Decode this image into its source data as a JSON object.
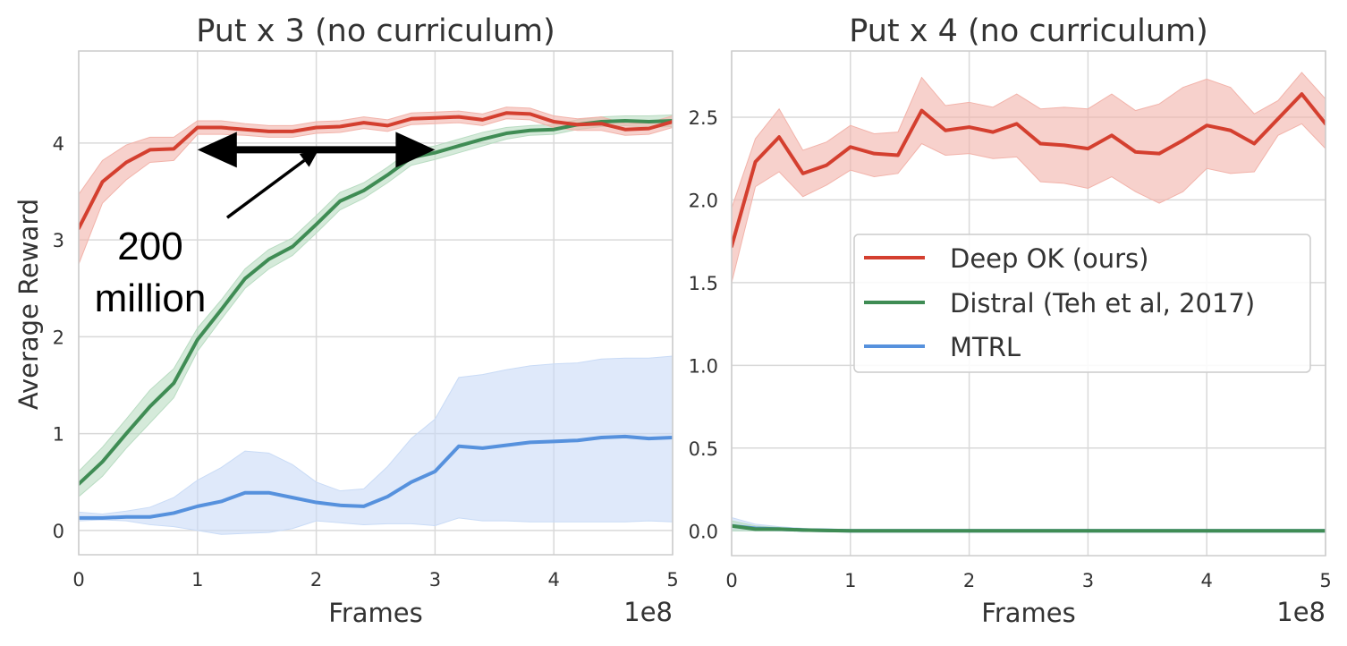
{
  "chart_data": [
    {
      "type": "line",
      "title": "Put x 3 (no curriculum)",
      "xlabel": "Frames",
      "ylabel": "Average Reward",
      "x_offset_label": "1e8",
      "xlim": [
        0,
        5
      ],
      "ylim": [
        -0.25,
        4.95
      ],
      "xticks": [
        0,
        1,
        2,
        3,
        4,
        5
      ],
      "xtick_labels": [
        "0",
        "1",
        "2",
        "3",
        "4",
        "5"
      ],
      "yticks": [
        0,
        1,
        2,
        3,
        4
      ],
      "ytick_labels": [
        "0",
        "1",
        "2",
        "3",
        "4"
      ],
      "grid": true,
      "legend": "none",
      "x": [
        0,
        0.2,
        0.4,
        0.6,
        0.8,
        1.0,
        1.2,
        1.4,
        1.6,
        1.8,
        2.0,
        2.2,
        2.4,
        2.6,
        2.8,
        3.0,
        3.2,
        3.4,
        3.6,
        3.8,
        4.0,
        4.2,
        4.4,
        4.6,
        4.8,
        5.0
      ],
      "series": [
        {
          "color": "#d43f2f",
          "band_color": "#f2b3aa",
          "values": [
            3.12,
            3.6,
            3.8,
            3.93,
            3.94,
            4.16,
            4.16,
            4.14,
            4.12,
            4.12,
            4.16,
            4.17,
            4.21,
            4.18,
            4.25,
            4.26,
            4.27,
            4.24,
            4.31,
            4.3,
            4.22,
            4.19,
            4.2,
            4.14,
            4.15,
            4.22
          ],
          "lower": [
            2.75,
            3.38,
            3.62,
            3.8,
            3.82,
            4.09,
            4.09,
            4.08,
            4.06,
            4.06,
            4.1,
            4.11,
            4.15,
            4.12,
            4.19,
            4.2,
            4.21,
            4.18,
            4.25,
            4.24,
            4.16,
            4.13,
            4.13,
            4.08,
            4.09,
            4.16
          ],
          "upper": [
            3.47,
            3.82,
            3.98,
            4.06,
            4.06,
            4.23,
            4.23,
            4.2,
            4.18,
            4.18,
            4.22,
            4.23,
            4.27,
            4.24,
            4.31,
            4.32,
            4.33,
            4.3,
            4.37,
            4.36,
            4.28,
            4.25,
            4.27,
            4.2,
            4.21,
            4.28
          ]
        },
        {
          "color": "#3f8c54",
          "band_color": "#b9dcc2",
          "values": [
            0.48,
            0.71,
            1.0,
            1.28,
            1.52,
            1.97,
            2.28,
            2.6,
            2.8,
            2.93,
            3.16,
            3.4,
            3.51,
            3.67,
            3.85,
            3.9,
            3.97,
            4.04,
            4.1,
            4.13,
            4.14,
            4.19,
            4.22,
            4.23,
            4.22,
            4.23
          ],
          "lower": [
            0.35,
            0.56,
            0.85,
            1.11,
            1.37,
            1.85,
            2.18,
            2.5,
            2.7,
            2.84,
            3.07,
            3.31,
            3.43,
            3.59,
            3.77,
            3.83,
            3.9,
            3.97,
            4.04,
            4.08,
            4.09,
            4.14,
            4.17,
            4.18,
            4.16,
            4.17
          ],
          "upper": [
            0.61,
            0.86,
            1.15,
            1.45,
            1.67,
            2.09,
            2.38,
            2.7,
            2.9,
            3.02,
            3.25,
            3.49,
            3.59,
            3.75,
            3.93,
            3.97,
            4.04,
            4.11,
            4.16,
            4.18,
            4.19,
            4.24,
            4.27,
            4.28,
            4.28,
            4.29
          ]
        },
        {
          "color": "#5691dd",
          "band_color": "#c9dbf6",
          "values": [
            0.13,
            0.13,
            0.14,
            0.14,
            0.18,
            0.25,
            0.3,
            0.39,
            0.39,
            0.34,
            0.29,
            0.26,
            0.25,
            0.35,
            0.5,
            0.61,
            0.87,
            0.85,
            0.88,
            0.91,
            0.92,
            0.93,
            0.96,
            0.97,
            0.95,
            0.96
          ],
          "lower": [
            0.1,
            0.11,
            0.1,
            0.06,
            0.04,
            0.0,
            -0.04,
            -0.03,
            -0.02,
            0.02,
            0.1,
            0.08,
            0.06,
            0.07,
            0.07,
            0.05,
            0.13,
            0.1,
            0.1,
            0.09,
            0.09,
            0.09,
            0.09,
            0.09,
            0.1,
            0.09
          ],
          "upper": [
            0.19,
            0.17,
            0.2,
            0.24,
            0.34,
            0.52,
            0.65,
            0.82,
            0.8,
            0.68,
            0.5,
            0.41,
            0.43,
            0.66,
            0.95,
            1.15,
            1.58,
            1.61,
            1.66,
            1.7,
            1.72,
            1.73,
            1.77,
            1.78,
            1.78,
            1.8
          ]
        }
      ],
      "annotations": [
        {
          "text_lines": [
            "200",
            "million"
          ],
          "double_arrow_x": [
            1.0,
            3.0
          ],
          "double_arrow_y": 3.93,
          "pointer_from": [
            1.25,
            3.23
          ],
          "pointer_to": [
            2.02,
            3.93
          ]
        }
      ]
    },
    {
      "type": "line",
      "title": "Put x 4 (no curriculum)",
      "xlabel": "Frames",
      "ylabel": "",
      "x_offset_label": "1e8",
      "xlim": [
        0,
        5
      ],
      "ylim": [
        -0.15,
        2.9
      ],
      "xticks": [
        0,
        1,
        2,
        3,
        4,
        5
      ],
      "xtick_labels": [
        "0",
        "1",
        "2",
        "3",
        "4",
        "5"
      ],
      "yticks": [
        0,
        0.5,
        1.0,
        1.5,
        2.0,
        2.5
      ],
      "ytick_labels": [
        "0.0",
        "0.5",
        "1.0",
        "1.5",
        "2.0",
        "2.5"
      ],
      "grid": true,
      "legend": "center-right",
      "x": [
        0,
        0.2,
        0.4,
        0.6,
        0.8,
        1.0,
        1.2,
        1.4,
        1.6,
        1.8,
        2.0,
        2.2,
        2.4,
        2.6,
        2.8,
        3.0,
        3.2,
        3.4,
        3.6,
        3.8,
        4.0,
        4.2,
        4.4,
        4.6,
        4.8,
        5.0
      ],
      "series": [
        {
          "name": "Deep OK (ours)",
          "color": "#d43f2f",
          "band_color": "#f2b3aa",
          "values": [
            1.72,
            2.23,
            2.38,
            2.16,
            2.21,
            2.32,
            2.28,
            2.27,
            2.54,
            2.42,
            2.44,
            2.41,
            2.46,
            2.34,
            2.33,
            2.31,
            2.39,
            2.29,
            2.28,
            2.36,
            2.45,
            2.42,
            2.34,
            2.49,
            2.64,
            2.46
          ],
          "lower": [
            1.5,
            2.08,
            2.17,
            2.02,
            2.09,
            2.18,
            2.14,
            2.16,
            2.34,
            2.27,
            2.28,
            2.25,
            2.26,
            2.11,
            2.1,
            2.07,
            2.14,
            2.05,
            1.98,
            2.05,
            2.19,
            2.16,
            2.17,
            2.39,
            2.46,
            2.31
          ],
          "upper": [
            1.95,
            2.37,
            2.55,
            2.3,
            2.35,
            2.45,
            2.4,
            2.41,
            2.74,
            2.57,
            2.59,
            2.56,
            2.64,
            2.55,
            2.56,
            2.55,
            2.64,
            2.54,
            2.58,
            2.68,
            2.73,
            2.68,
            2.52,
            2.6,
            2.77,
            2.61
          ]
        },
        {
          "name": "Distral (Teh et al, 2017)",
          "color": "#3f8c54",
          "band_color": "#b9dcc2",
          "values": [
            0.03,
            0.01,
            0.01,
            0.005,
            0.002,
            0,
            0,
            0,
            0,
            0,
            0,
            0,
            0,
            0,
            0,
            0,
            0,
            0,
            0,
            0,
            0,
            0,
            0,
            0,
            0,
            0
          ],
          "lower": [
            0.0,
            0.0,
            0.0,
            0.0,
            0.0,
            0,
            0,
            0,
            0,
            0,
            0,
            0,
            0,
            0,
            0,
            0,
            0,
            0,
            0,
            0,
            0,
            0,
            0,
            0,
            0,
            0
          ],
          "upper": [
            0.06,
            0.03,
            0.02,
            0.01,
            0.005,
            0,
            0,
            0,
            0,
            0,
            0,
            0,
            0,
            0,
            0,
            0,
            0,
            0,
            0,
            0,
            0,
            0,
            0,
            0,
            0,
            0
          ]
        },
        {
          "name": "MTRL",
          "color": "#5691dd",
          "band_color": "#c9dbf6",
          "values": [
            0.03,
            0.015,
            0.01,
            0.005,
            0.003,
            0,
            0,
            0,
            0,
            0,
            0,
            0,
            0,
            0,
            0,
            0,
            0,
            0,
            0,
            0,
            0,
            0,
            0,
            0,
            0,
            0
          ],
          "lower": [
            0.0,
            0.0,
            0.0,
            0.0,
            0.0,
            0,
            0,
            0,
            0,
            0,
            0,
            0,
            0,
            0,
            0,
            0,
            0,
            0,
            0,
            0,
            0,
            0,
            0,
            0,
            0,
            0
          ],
          "upper": [
            0.08,
            0.04,
            0.025,
            0.015,
            0.008,
            0.002,
            0,
            0,
            0,
            0,
            0,
            0,
            0,
            0,
            0,
            0,
            0,
            0,
            0,
            0,
            0,
            0,
            0,
            0,
            0,
            0
          ]
        }
      ]
    }
  ]
}
